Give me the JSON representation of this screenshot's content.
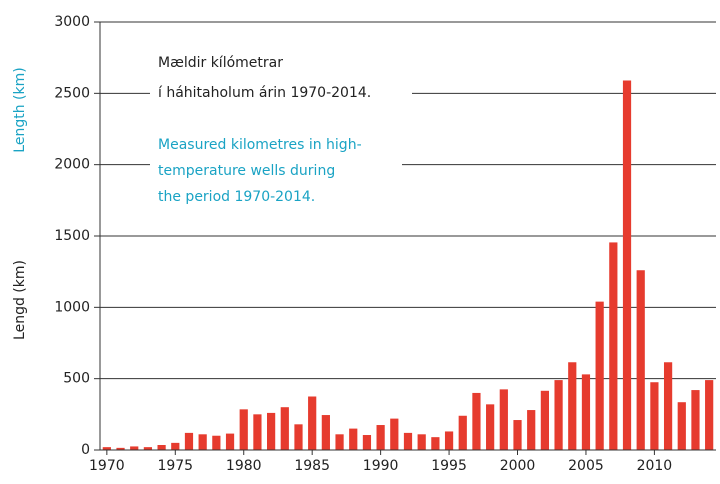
{
  "chart_data": {
    "type": "bar",
    "x": [
      1970,
      1971,
      1972,
      1973,
      1974,
      1975,
      1976,
      1977,
      1978,
      1979,
      1980,
      1981,
      1982,
      1983,
      1984,
      1985,
      1986,
      1987,
      1988,
      1989,
      1990,
      1991,
      1992,
      1993,
      1994,
      1995,
      1996,
      1997,
      1998,
      1999,
      2000,
      2001,
      2002,
      2003,
      2004,
      2005,
      2006,
      2007,
      2008,
      2009,
      2010,
      2011,
      2012,
      2013,
      2014
    ],
    "values": [
      20,
      15,
      25,
      20,
      35,
      50,
      120,
      110,
      100,
      115,
      285,
      250,
      260,
      300,
      180,
      375,
      245,
      110,
      150,
      105,
      175,
      220,
      120,
      110,
      90,
      130,
      240,
      400,
      320,
      425,
      210,
      280,
      415,
      490,
      615,
      530,
      1040,
      1455,
      2590,
      1260,
      475,
      615,
      335,
      420,
      490
    ],
    "color": "#e63b2e",
    "xlim": [
      1969.5,
      2014.5
    ],
    "xticks": [
      1970,
      1975,
      1980,
      1985,
      1990,
      1995,
      2000,
      2005,
      2010
    ],
    "ylim": [
      0,
      3000
    ],
    "yticks": [
      0,
      500,
      1000,
      1500,
      2000,
      2500,
      3000
    ],
    "grid": true,
    "y_label_en": "Length (km)",
    "y_label_is": "Lengd (km)",
    "annotation_is": [
      "Mældir kílómetrar",
      "í háhitaholum árin 1970-2014."
    ],
    "annotation_en": [
      "Measured kilometres in high-",
      "temperature wells during",
      "the period 1970-2014."
    ]
  }
}
